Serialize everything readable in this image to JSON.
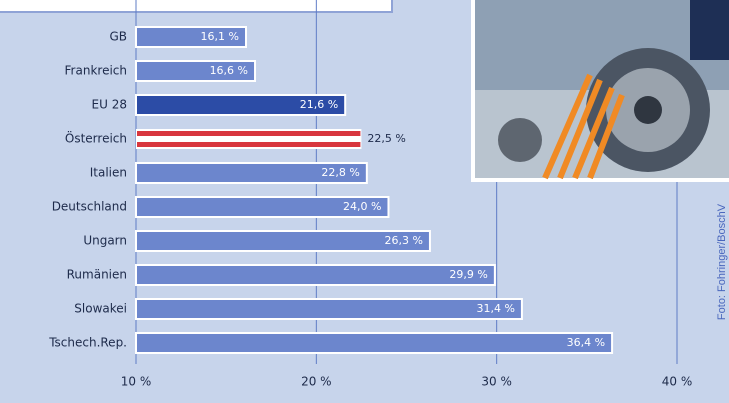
{
  "chart_data": {
    "type": "bar",
    "orientation": "horizontal",
    "categories": [
      "GB",
      "Frankreich",
      "EU 28",
      "Österreich",
      "Italien",
      "Deutschland",
      "Ungarn",
      "Rumänien",
      "Slowakei",
      "Tschech.Rep."
    ],
    "values": [
      16.1,
      16.6,
      21.6,
      22.5,
      22.8,
      24.0,
      26.3,
      29.9,
      31.4,
      36.4
    ],
    "value_labels": [
      "16,1 %",
      "16,6 %",
      "21,6 %",
      "22,5 %",
      "22,8 %",
      "24,0 %",
      "26,3 %",
      "29,9 %",
      "31,4 %",
      "36,4 %"
    ],
    "colors": [
      "#6c86cd",
      "#6c86cd",
      "#2c4ca6",
      "#d8363e",
      "#6c86cd",
      "#6c86cd",
      "#6c86cd",
      "#6c86cd",
      "#6c86cd",
      "#6c86cd"
    ],
    "flag_category": "Österreich",
    "xlim": [
      10,
      40
    ],
    "xticks": [
      {
        "value": 10,
        "label": "10 %"
      },
      {
        "value": 20,
        "label": "20 %"
      },
      {
        "value": 30,
        "label": "30 %"
      },
      {
        "value": 40,
        "label": "40 %"
      }
    ],
    "grid": true,
    "photo_credit": "Foto: Fohringer/BoschV"
  }
}
